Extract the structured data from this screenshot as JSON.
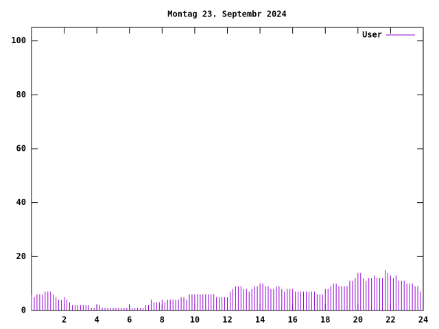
{
  "chart_data": {
    "type": "impulses",
    "title": "Montag 23. Septembr 2024",
    "series": [
      {
        "name": "User",
        "color": "#9400d3",
        "x": [
          0,
          0.167,
          0.333,
          0.5,
          0.667,
          0.833,
          1,
          1.167,
          1.333,
          1.5,
          1.667,
          1.833,
          2,
          2.167,
          2.333,
          2.5,
          2.667,
          2.833,
          3,
          3.167,
          3.333,
          3.5,
          3.667,
          3.833,
          4,
          4.167,
          4.333,
          4.5,
          4.667,
          4.833,
          5,
          5.167,
          5.333,
          5.5,
          5.667,
          5.833,
          6,
          6.167,
          6.333,
          6.5,
          6.667,
          6.833,
          7,
          7.167,
          7.333,
          7.5,
          7.667,
          7.833,
          8,
          8.167,
          8.333,
          8.5,
          8.667,
          8.833,
          9,
          9.167,
          9.333,
          9.5,
          9.667,
          9.833,
          10,
          10.167,
          10.333,
          10.5,
          10.667,
          10.833,
          11,
          11.167,
          11.333,
          11.5,
          11.667,
          11.833,
          12,
          12.167,
          12.333,
          12.5,
          12.667,
          12.833,
          13,
          13.167,
          13.333,
          13.5,
          13.667,
          13.833,
          14,
          14.167,
          14.333,
          14.5,
          14.667,
          14.833,
          15,
          15.167,
          15.333,
          15.5,
          15.667,
          15.833,
          16,
          16.167,
          16.333,
          16.5,
          16.667,
          16.833,
          17,
          17.167,
          17.333,
          17.5,
          17.667,
          17.833,
          18,
          18.167,
          18.333,
          18.5,
          18.667,
          18.833,
          19,
          19.167,
          19.333,
          19.5,
          19.667,
          19.833,
          20,
          20.167,
          20.333,
          20.5,
          20.667,
          20.833,
          21,
          21.167,
          21.333,
          21.5,
          21.667,
          21.833,
          22,
          22.167,
          22.333,
          22.5,
          22.667,
          22.833,
          23,
          23.167,
          23.333,
          23.5,
          23.667,
          23.833
        ],
        "values": [
          6,
          5,
          6,
          6,
          6,
          7,
          7,
          7,
          6,
          5,
          4,
          4,
          5,
          4,
          3,
          2,
          2,
          2,
          2,
          2,
          2,
          2,
          1,
          1,
          2,
          2,
          1,
          1,
          1,
          1,
          1,
          1,
          1,
          1,
          1,
          1,
          1,
          1,
          1,
          1,
          1,
          1,
          2,
          2,
          4,
          3,
          3,
          3,
          4,
          3,
          4,
          4,
          4,
          4,
          4,
          5,
          5,
          4,
          6,
          6,
          6,
          6,
          6,
          6,
          6,
          6,
          6,
          6,
          5,
          5,
          5,
          5,
          5,
          7,
          8,
          9,
          9,
          9,
          8,
          8,
          7,
          8,
          9,
          9,
          10,
          10,
          9,
          9,
          8,
          8,
          9,
          9,
          8,
          7,
          8,
          8,
          8,
          7,
          7,
          7,
          7,
          7,
          7,
          7,
          7,
          6,
          6,
          6,
          8,
          8,
          9,
          10,
          10,
          9,
          9,
          9,
          9,
          11,
          11,
          12,
          14,
          14,
          12,
          11,
          12,
          12,
          13,
          12,
          12,
          12,
          15,
          14,
          13,
          12,
          13,
          11,
          11,
          11,
          10,
          10,
          10,
          9,
          9,
          7
        ]
      }
    ],
    "xlim": [
      0,
      24
    ],
    "xticks": [
      2,
      4,
      6,
      8,
      10,
      12,
      14,
      16,
      18,
      20,
      22,
      24
    ],
    "ylim": [
      0,
      105
    ],
    "yticks": [
      0,
      20,
      40,
      60,
      80,
      100
    ],
    "legend": "top-right"
  }
}
